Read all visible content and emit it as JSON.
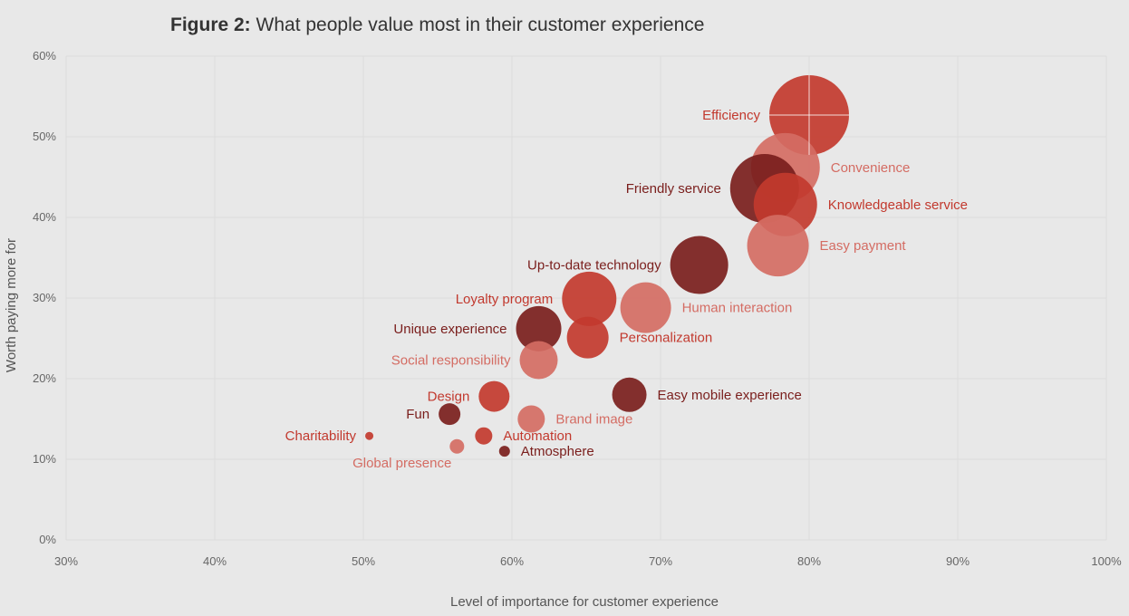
{
  "figure": {
    "title_prefix": "Figure 2:",
    "title_text": "What people value most in their customer experience"
  },
  "colors": {
    "background": "#e8e8e8",
    "dark": "#7a1e1c",
    "mid": "#c2392e",
    "light": "#d46c63"
  },
  "chart_data": {
    "type": "scatter",
    "variant": "bubble",
    "title": "What people value most in their customer experience",
    "xlabel": "Level of importance for customer experience",
    "ylabel": "Worth paying more for",
    "xlim": [
      30,
      100
    ],
    "ylim": [
      0,
      60
    ],
    "x_ticks": [
      "30%",
      "40%",
      "50%",
      "60%",
      "70%",
      "80%",
      "90%",
      "100%"
    ],
    "y_ticks": [
      "0%",
      "10%",
      "20%",
      "30%",
      "40%",
      "50%",
      "60%"
    ],
    "grid": true,
    "points": [
      {
        "label": "Efficiency",
        "x": 80.0,
        "y": 52.7,
        "size": 44,
        "color": "mid",
        "label_side": "left"
      },
      {
        "label": "Convenience",
        "x": 78.4,
        "y": 46.2,
        "size": 38,
        "color": "light",
        "label_side": "right"
      },
      {
        "label": "Friendly service",
        "x": 77.0,
        "y": 43.6,
        "size": 38,
        "color": "dark",
        "label_side": "left"
      },
      {
        "label": "Knowledgeable service",
        "x": 78.4,
        "y": 41.6,
        "size": 35,
        "color": "mid",
        "label_side": "right"
      },
      {
        "label": "Easy payment",
        "x": 77.9,
        "y": 36.5,
        "size": 34,
        "color": "light",
        "label_side": "right"
      },
      {
        "label": "Up-to-date technology",
        "x": 72.6,
        "y": 34.1,
        "size": 32,
        "color": "dark",
        "label_side": "left"
      },
      {
        "label": "Loyalty program",
        "x": 65.2,
        "y": 29.9,
        "size": 30,
        "color": "mid",
        "label_side": "left"
      },
      {
        "label": "Human interaction",
        "x": 69.0,
        "y": 28.8,
        "size": 28,
        "color": "light",
        "label_side": "right"
      },
      {
        "label": "Unique experience",
        "x": 61.8,
        "y": 26.2,
        "size": 25,
        "color": "dark",
        "label_side": "left"
      },
      {
        "label": "Personalization",
        "x": 65.1,
        "y": 25.1,
        "size": 23,
        "color": "mid",
        "label_side": "right"
      },
      {
        "label": "Social responsibility",
        "x": 61.8,
        "y": 22.3,
        "size": 21,
        "color": "light",
        "label_side": "left"
      },
      {
        "label": "Easy mobile experience",
        "x": 67.9,
        "y": 18.0,
        "size": 19,
        "color": "dark",
        "label_side": "right"
      },
      {
        "label": "Design",
        "x": 58.8,
        "y": 17.8,
        "size": 17,
        "color": "mid",
        "label_side": "left"
      },
      {
        "label": "Fun",
        "x": 55.8,
        "y": 15.6,
        "size": 12,
        "color": "dark",
        "label_side": "left"
      },
      {
        "label": "Brand image",
        "x": 61.3,
        "y": 15.0,
        "size": 15,
        "color": "light",
        "label_side": "right"
      },
      {
        "label": "Charitability",
        "x": 50.4,
        "y": 12.9,
        "size": 4.5,
        "color": "mid",
        "label_side": "left"
      },
      {
        "label": "Automation",
        "x": 58.1,
        "y": 12.9,
        "size": 9.5,
        "color": "mid",
        "label_side": "right"
      },
      {
        "label": "Global presence",
        "x": 56.3,
        "y": 11.6,
        "size": 8,
        "color": "light",
        "label_side": "left-below"
      },
      {
        "label": "Atmosphere",
        "x": 59.5,
        "y": 11.0,
        "size": 6,
        "color": "dark",
        "label_side": "right"
      }
    ]
  }
}
